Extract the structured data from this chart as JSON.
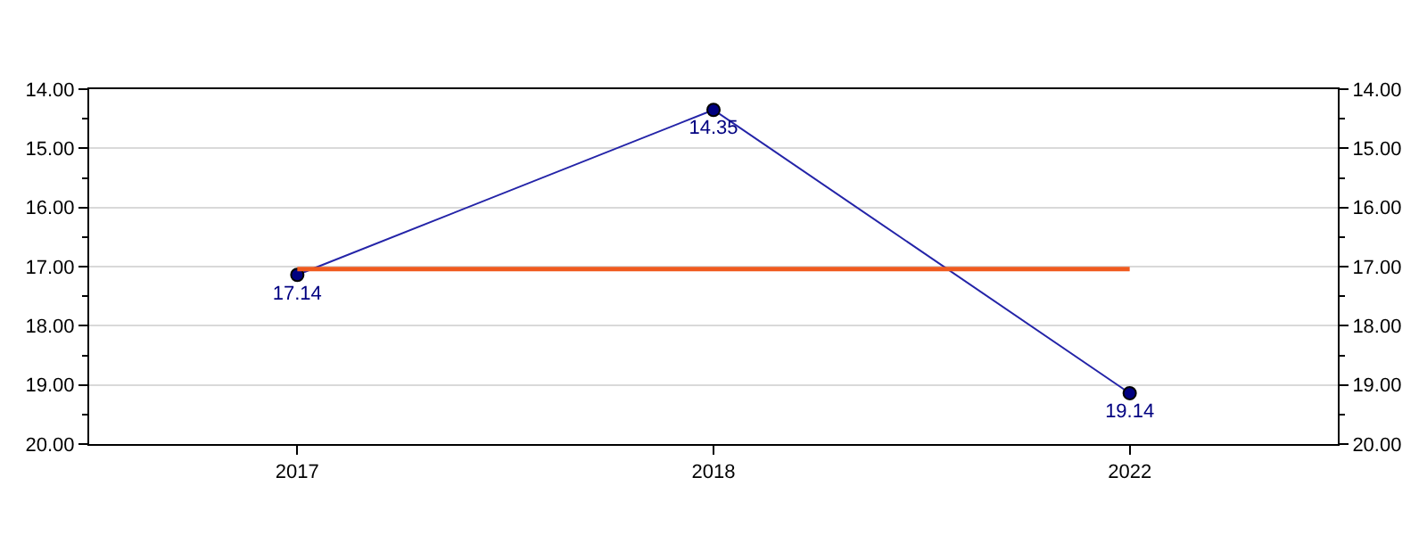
{
  "chart_data": {
    "type": "line",
    "categories": [
      "2017",
      "2018",
      "2022"
    ],
    "series": [
      {
        "color": "#2424a8",
        "values": [
          17.14,
          14.35,
          19.14
        ]
      }
    ],
    "marker": "circle",
    "line_style": "solid",
    "data_labels": true,
    "ylim": [
      20,
      14
    ],
    "yticks": [
      {
        "value": 14,
        "label": "14.00"
      },
      {
        "value": 14.5,
        "label": null
      },
      {
        "value": 15,
        "label": "15.00"
      },
      {
        "value": 15.5,
        "label": null
      },
      {
        "value": 16,
        "label": "16.00"
      },
      {
        "value": 16.5,
        "label": null
      },
      {
        "value": 17,
        "label": "17.00"
      },
      {
        "value": 17.5,
        "label": null
      },
      {
        "value": 18,
        "label": "18.00"
      },
      {
        "value": 18.5,
        "label": null
      },
      {
        "value": 19,
        "label": "19.00"
      },
      {
        "value": 19.5,
        "label": null
      },
      {
        "value": 20,
        "label": "20.00"
      }
    ],
    "y2lim": [
      20,
      14
    ],
    "y2ticks": [
      {
        "value": 14,
        "label": "14.00"
      },
      {
        "value": 14.5,
        "label": null
      },
      {
        "value": 15,
        "label": "15.00"
      },
      {
        "value": 15.5,
        "label": null
      },
      {
        "value": 16,
        "label": "16.00"
      },
      {
        "value": 16.5,
        "label": null
      },
      {
        "value": 17,
        "label": "17.00"
      },
      {
        "value": 17.5,
        "label": null
      },
      {
        "value": 18,
        "label": "18.00"
      },
      {
        "value": 18.5,
        "label": null
      },
      {
        "value": 19,
        "label": "19.00"
      },
      {
        "value": 19.5,
        "label": null
      },
      {
        "value": 20,
        "label": "20.00"
      }
    ],
    "ref_lines": [
      {
        "axis": "y",
        "value": 17.04,
        "color": "#f05a1e"
      }
    ],
    "grid": "y"
  }
}
